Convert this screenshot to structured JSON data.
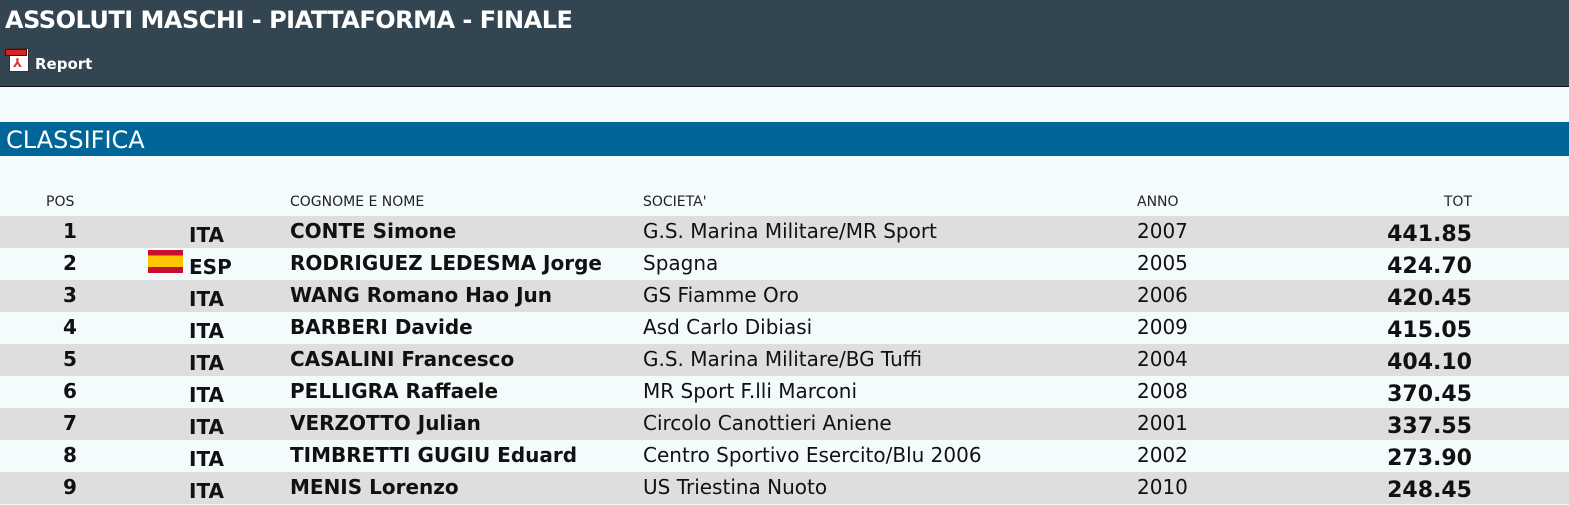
{
  "header": {
    "title": "ASSOLUTI MASCHI - PIATTAFORMA - FINALE",
    "report_label": "Report"
  },
  "section": {
    "title": "CLASSIFICA"
  },
  "columns": {
    "pos": "POS",
    "name": "COGNOME E NOME",
    "societa": "SOCIETA'",
    "anno": "ANNO",
    "tot": "TOT"
  },
  "rows": [
    {
      "pos": "1",
      "nation": "ITA",
      "name": "CONTE Simone",
      "societa": "G.S. Marina Militare/MR Sport",
      "anno": "2007",
      "tot": "441.85"
    },
    {
      "pos": "2",
      "nation": "ESP",
      "name": "RODRIGUEZ LEDESMA Jorge",
      "societa": "Spagna",
      "anno": "2005",
      "tot": "424.70"
    },
    {
      "pos": "3",
      "nation": "ITA",
      "name": "WANG Romano Hao Jun",
      "societa": "GS Fiamme Oro",
      "anno": "2006",
      "tot": "420.45"
    },
    {
      "pos": "4",
      "nation": "ITA",
      "name": "BARBERI Davide",
      "societa": "Asd Carlo Dibiasi",
      "anno": "2009",
      "tot": "415.05"
    },
    {
      "pos": "5",
      "nation": "ITA",
      "name": "CASALINI Francesco",
      "societa": "G.S. Marina Militare/BG Tuffi",
      "anno": "2004",
      "tot": "404.10"
    },
    {
      "pos": "6",
      "nation": "ITA",
      "name": "PELLIGRA Raffaele",
      "societa": "MR Sport F.lli Marconi",
      "anno": "2008",
      "tot": "370.45"
    },
    {
      "pos": "7",
      "nation": "ITA",
      "name": "VERZOTTO Julian",
      "societa": "Circolo Canottieri Aniene",
      "anno": "2001",
      "tot": "337.55"
    },
    {
      "pos": "8",
      "nation": "ITA",
      "name": "TIMBRETTI GUGIU Eduard",
      "societa": "Centro Sportivo Esercito/Blu 2006",
      "anno": "2002",
      "tot": "273.90"
    },
    {
      "pos": "9",
      "nation": "ITA",
      "name": "MENIS Lorenzo",
      "societa": "US Triestina Nuoto",
      "anno": "2010",
      "tot": "248.45"
    }
  ]
}
